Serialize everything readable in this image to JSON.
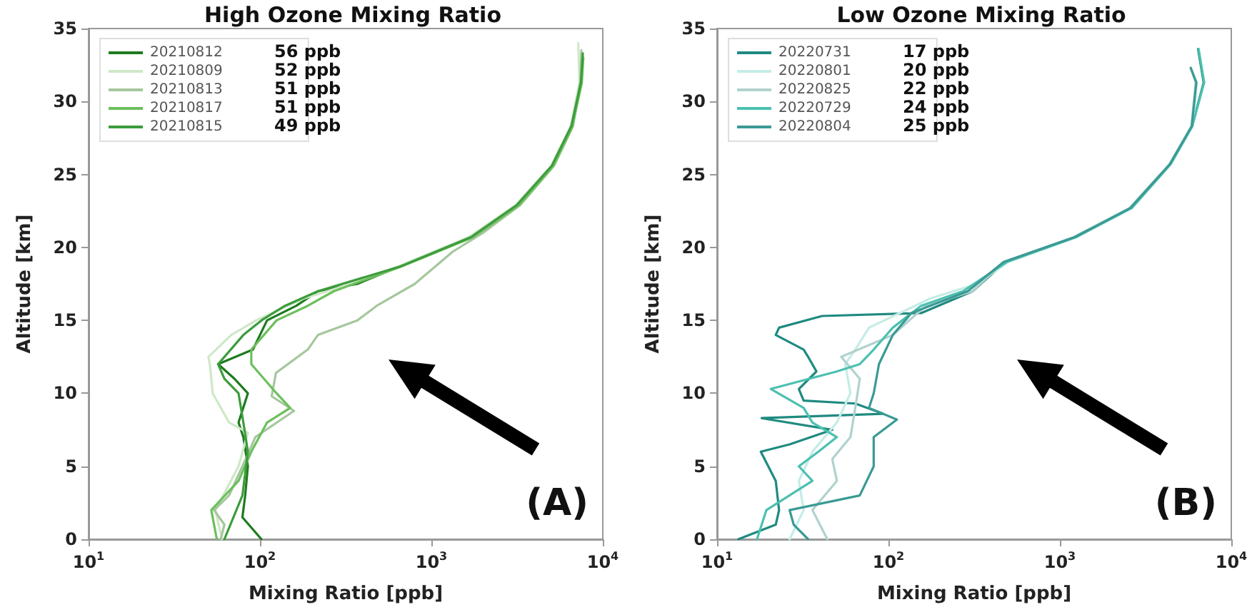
{
  "chart_data": [
    {
      "type": "line",
      "title": "High Ozone Mixing Ratio",
      "xlabel": "Mixing Ratio [ppb]",
      "ylabel": "Altitude [km]",
      "log": "x",
      "xlim": [
        10,
        10000
      ],
      "xticks": [
        {
          "value": 10,
          "label": "10$^{1}$"
        },
        {
          "value": 100,
          "label": "10$^{2}$"
        },
        {
          "value": 1000,
          "label": "10$^{3}$"
        },
        {
          "value": 10000,
          "label": "10$^{4}$"
        }
      ],
      "ylim": [
        0,
        35
      ],
      "yticks": [
        0,
        5,
        10,
        15,
        20,
        25,
        30,
        35
      ],
      "grid": false,
      "legend": "top left",
      "marker": "none",
      "annotations": [
        "56 ppb",
        "52 ppb",
        "51 ppb",
        "51 ppb",
        "49 ppb",
        "(A)"
      ],
      "series": [
        {
          "name": "20210812",
          "color": "#1e7b1e",
          "x": [
            102,
            79,
            82,
            85,
            80,
            75,
            85,
            71,
            57,
            91,
            110,
            163,
            218,
            370,
            650,
            1700,
            3200,
            5100,
            6600,
            7500,
            7600
          ],
          "values": [
            0,
            1.5,
            3,
            5,
            7,
            8,
            10,
            11,
            12,
            13,
            15,
            16,
            17,
            17.5,
            18.7,
            20.7,
            22.9,
            25.6,
            28.3,
            31.3,
            33.2
          ]
        },
        {
          "name": "20210809",
          "color": "#cfe8c8",
          "x": [
            60,
            55,
            75,
            85,
            66,
            53,
            51,
            50,
            68,
            95,
            180,
            300,
            640,
            1650,
            3100,
            5000,
            6500,
            7300,
            7200
          ],
          "values": [
            0,
            2,
            5,
            7.3,
            8,
            10,
            12,
            12.5,
            14,
            15,
            16.5,
            17.3,
            18.7,
            20.7,
            22.9,
            25.6,
            28.3,
            31.3,
            34
          ]
        },
        {
          "name": "20210813",
          "color": "#a5c79c",
          "x": [
            59,
            62,
            54,
            66,
            79,
            94,
            158,
            117,
            124,
            190,
            218,
            370,
            480,
            800,
            1330,
            2000,
            3300,
            5200,
            6700,
            7400,
            7500
          ],
          "values": [
            0,
            1,
            2,
            3,
            5,
            7,
            8.8,
            9.8,
            11.4,
            13,
            14,
            15,
            16,
            17.5,
            19.7,
            21,
            22.9,
            25.6,
            28.3,
            31.3,
            33.5
          ]
        },
        {
          "name": "20210817",
          "color": "#6cbf5c",
          "x": [
            56,
            52,
            75,
            89,
            110,
            150,
            125,
            89,
            89,
            125,
            190,
            270,
            670,
            1750,
            3250,
            5150,
            6650,
            7550,
            7700
          ],
          "values": [
            0,
            2,
            4,
            6,
            8,
            9,
            10,
            12,
            13,
            15,
            16,
            17,
            18.7,
            20.7,
            22.9,
            25.6,
            28.3,
            31.3,
            33
          ]
        },
        {
          "name": "20210815",
          "color": "#3c9c3c",
          "x": [
            62,
            79,
            85,
            80,
            75,
            62,
            57,
            80,
            102,
            140,
            218,
            660,
            1700,
            3150,
            5050,
            6550,
            7450,
            7650
          ],
          "values": [
            0,
            3,
            6,
            8,
            10,
            11,
            12,
            14,
            15,
            16,
            17,
            18.7,
            20.7,
            22.9,
            25.6,
            28.3,
            31.3,
            33.3
          ]
        }
      ]
    },
    {
      "type": "line",
      "title": "Low Ozone Mixing Ratio",
      "xlabel": "Mixing Ratio [ppb]",
      "ylabel": "Altitude [km]",
      "log": "x",
      "xlim": [
        10,
        10000
      ],
      "xticks": [
        {
          "value": 10,
          "label": "10$^{1}$"
        },
        {
          "value": 100,
          "label": "10$^{2}$"
        },
        {
          "value": 1000,
          "label": "10$^{3}$"
        },
        {
          "value": 10000,
          "label": "10$^{4}$"
        }
      ],
      "ylim": [
        0,
        35
      ],
      "yticks": [
        0,
        5,
        10,
        15,
        20,
        25,
        30,
        35
      ],
      "grid": false,
      "legend": "top left",
      "marker": "none",
      "annotations": [
        "17 ppb",
        "20 ppb",
        "22 ppb",
        "24 ppb",
        "25 ppb",
        "(B)"
      ],
      "series": [
        {
          "name": "20220731",
          "color": "#1f8a80",
          "x": [
            13.3,
            22,
            23,
            22,
            18,
            26.5,
            47,
            18.2,
            93,
            64,
            32,
            30,
            38,
            34,
            32,
            22,
            23,
            41,
            155,
            310,
            480,
            1230,
            2600,
            4400,
            5900,
            6900,
            6400
          ],
          "values": [
            0,
            1,
            2,
            4,
            6,
            6.5,
            7.5,
            8.3,
            8.6,
            9.3,
            9.5,
            10.3,
            11.5,
            12.5,
            13,
            14,
            14.5,
            15.3,
            15.5,
            17,
            19,
            20.7,
            22.7,
            25.7,
            28.3,
            31.3,
            33.6
          ]
        },
        {
          "name": "20220801",
          "color": "#c5ece6",
          "x": [
            26.5,
            32,
            30,
            36,
            50,
            60,
            56,
            64,
            77,
            175,
            328,
            500,
            1250,
            2650,
            4450,
            5950,
            6300,
            5800
          ],
          "values": [
            0,
            2,
            4,
            6,
            8,
            10,
            12,
            13,
            14.5,
            16.5,
            17.5,
            19,
            20.7,
            22.7,
            25.7,
            28.3,
            31.3,
            32.3
          ]
        },
        {
          "name": "20220825",
          "color": "#b0d2cd",
          "x": [
            44,
            36,
            50,
            47,
            60,
            64,
            68,
            53,
            106,
            165,
            309,
            470,
            1200,
            2550,
            4350,
            5850,
            6200,
            5800
          ],
          "values": [
            0,
            2,
            4,
            5.5,
            7,
            9,
            11,
            12.5,
            14,
            16,
            17,
            19,
            20.7,
            22.7,
            25.7,
            28.3,
            31.3,
            32.3
          ]
        },
        {
          "name": "20220729",
          "color": "#4cc0b0",
          "x": [
            17.1,
            19.4,
            36,
            30,
            39,
            50,
            36,
            32,
            20.6,
            50,
            68,
            82,
            106,
            155,
            272,
            490,
            1240,
            2620,
            4420,
            5920,
            6950,
            6450
          ],
          "values": [
            0,
            2,
            4,
            5,
            6,
            7,
            8,
            9,
            10.3,
            11.5,
            12,
            13,
            14.5,
            16,
            17,
            19,
            20.7,
            22.7,
            25.7,
            28.3,
            31.3,
            33.6
          ]
        },
        {
          "name": "20220804",
          "color": "#3a9a94",
          "x": [
            34,
            28,
            26.5,
            68,
            82,
            82,
            112,
            77,
            82,
            88,
            106,
            136,
            290,
            470,
            1220,
            2580,
            4380,
            5880,
            6250,
            5800
          ],
          "values": [
            0,
            1,
            2,
            3,
            5,
            7,
            8.2,
            9,
            10,
            12,
            14,
            15.5,
            17,
            19,
            20.7,
            22.7,
            25.7,
            28.3,
            31.3,
            32.3
          ]
        }
      ]
    }
  ]
}
